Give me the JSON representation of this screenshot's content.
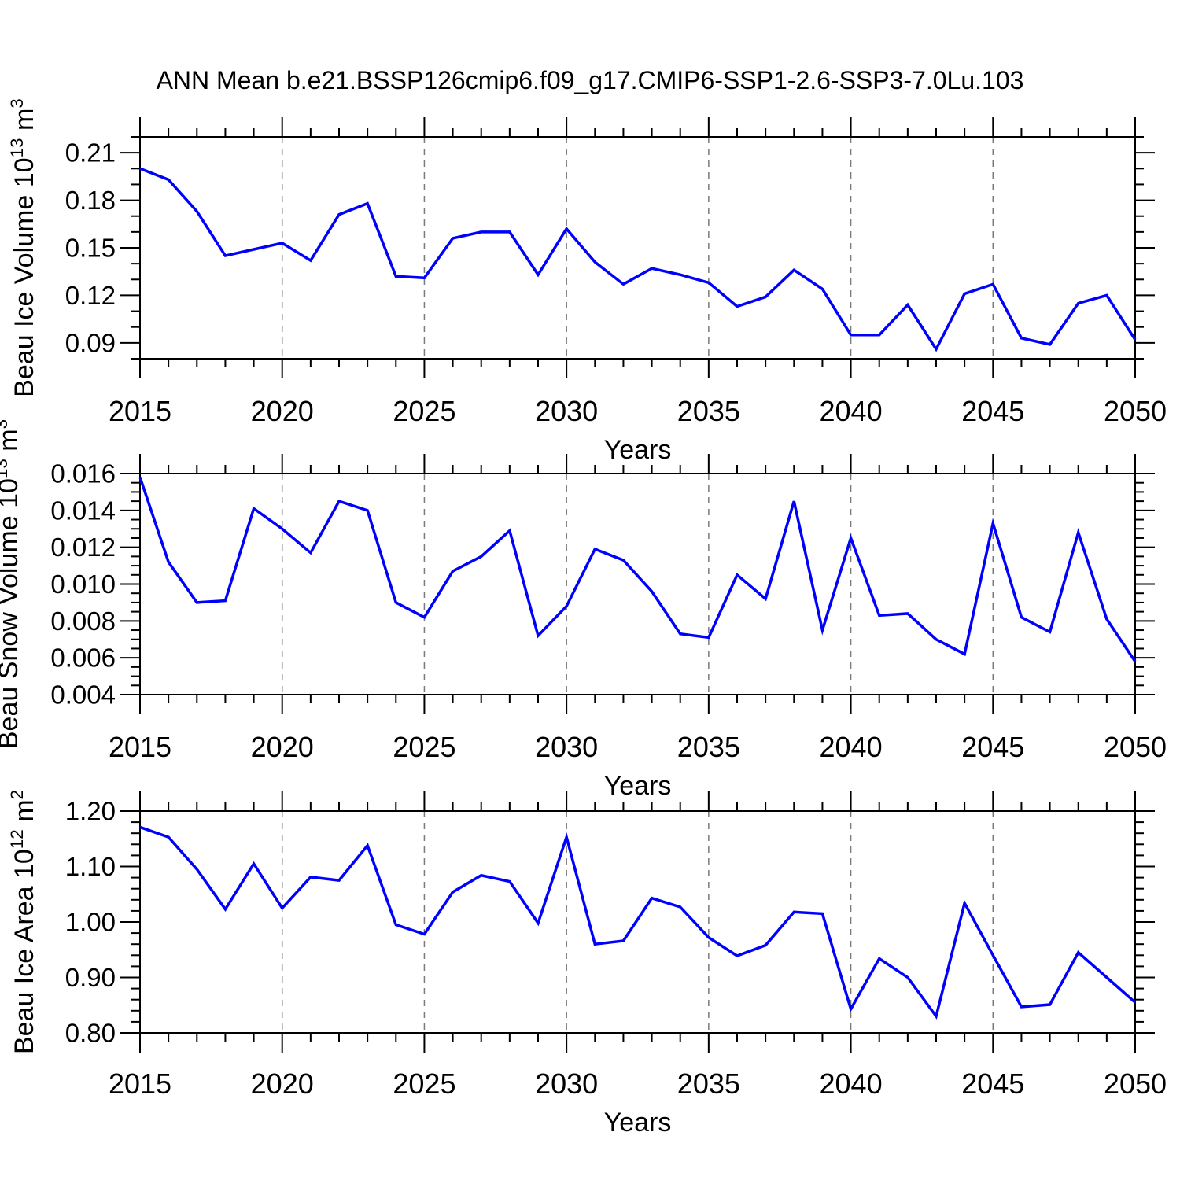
{
  "title": "ANN Mean b.e21.BSSP126cmip6.f09_g17.CMIP6-SSP1-2.6-SSP3-7.0Lu.103",
  "colors": {
    "line": "#0000ff",
    "grid": "#7a7a7a",
    "axis": "#000000",
    "background": "#ffffff"
  },
  "chart_data": [
    {
      "type": "line",
      "ylabel": "Beau Ice Volume 10^13 m^3",
      "ylabel_parts": [
        {
          "t": "Beau Ice Volume 10"
        },
        {
          "t": "13",
          "sup": true
        },
        {
          "t": " m"
        },
        {
          "t": "3",
          "sup": true
        }
      ],
      "xlabel": "Years",
      "ylim": [
        0.08,
        0.22
      ],
      "yticks": [
        {
          "v": 0.09,
          "label": "0.09"
        },
        {
          "v": 0.12,
          "label": "0.12"
        },
        {
          "v": 0.15,
          "label": "0.15"
        },
        {
          "v": 0.18,
          "label": "0.18"
        },
        {
          "v": 0.21,
          "label": "0.21"
        }
      ],
      "y_minor_step": 0.01,
      "xticks": [
        {
          "v": 2015,
          "label": "2015"
        },
        {
          "v": 2020,
          "label": "2020"
        },
        {
          "v": 2025,
          "label": "2025"
        },
        {
          "v": 2030,
          "label": "2030"
        },
        {
          "v": 2035,
          "label": "2035"
        },
        {
          "v": 2040,
          "label": "2040"
        },
        {
          "v": 2045,
          "label": "2045"
        },
        {
          "v": 2050,
          "label": "2050"
        }
      ],
      "gridlines_x": [
        2020,
        2025,
        2030,
        2035,
        2040,
        2045
      ],
      "grid": "vertical-dashed",
      "legend": "none",
      "x": [
        2015,
        2016,
        2017,
        2018,
        2019,
        2020,
        2021,
        2022,
        2023,
        2024,
        2025,
        2026,
        2027,
        2028,
        2029,
        2030,
        2031,
        2032,
        2033,
        2034,
        2035,
        2036,
        2037,
        2038,
        2039,
        2040,
        2041,
        2042,
        2043,
        2044,
        2045,
        2046,
        2047,
        2048,
        2049,
        2050
      ],
      "series": [
        {
          "name": "Beau Ice Volume",
          "values": [
            0.2,
            0.193,
            0.173,
            0.145,
            0.149,
            0.153,
            0.142,
            0.171,
            0.178,
            0.132,
            0.131,
            0.156,
            0.16,
            0.16,
            0.133,
            0.162,
            0.141,
            0.127,
            0.137,
            0.133,
            0.128,
            0.113,
            0.119,
            0.136,
            0.124,
            0.095,
            0.095,
            0.114,
            0.086,
            0.121,
            0.127,
            0.093,
            0.089,
            0.115,
            0.12,
            0.092
          ]
        }
      ]
    },
    {
      "type": "line",
      "ylabel": "Beau Snow Volume 10^13 m^3",
      "ylabel_parts": [
        {
          "t": "Beau Snow Volume 10"
        },
        {
          "t": "13",
          "sup": true
        },
        {
          "t": " m"
        },
        {
          "t": "3",
          "sup": true
        }
      ],
      "xlabel": "Years",
      "ylim": [
        0.004,
        0.016
      ],
      "yticks": [
        {
          "v": 0.004,
          "label": "0.004"
        },
        {
          "v": 0.006,
          "label": "0.006"
        },
        {
          "v": 0.008,
          "label": "0.008"
        },
        {
          "v": 0.01,
          "label": "0.010"
        },
        {
          "v": 0.012,
          "label": "0.012"
        },
        {
          "v": 0.014,
          "label": "0.014"
        },
        {
          "v": 0.016,
          "label": "0.016"
        }
      ],
      "y_minor_step": 0.0005,
      "xticks": [
        {
          "v": 2015,
          "label": "2015"
        },
        {
          "v": 2020,
          "label": "2020"
        },
        {
          "v": 2025,
          "label": "2025"
        },
        {
          "v": 2030,
          "label": "2030"
        },
        {
          "v": 2035,
          "label": "2035"
        },
        {
          "v": 2040,
          "label": "2040"
        },
        {
          "v": 2045,
          "label": "2045"
        },
        {
          "v": 2050,
          "label": "2050"
        }
      ],
      "gridlines_x": [
        2020,
        2025,
        2030,
        2035,
        2040,
        2045
      ],
      "grid": "vertical-dashed",
      "legend": "none",
      "x": [
        2015,
        2016,
        2017,
        2018,
        2019,
        2020,
        2021,
        2022,
        2023,
        2024,
        2025,
        2026,
        2027,
        2028,
        2029,
        2030,
        2031,
        2032,
        2033,
        2034,
        2035,
        2036,
        2037,
        2038,
        2039,
        2040,
        2041,
        2042,
        2043,
        2044,
        2045,
        2046,
        2047,
        2048,
        2049,
        2050
      ],
      "series": [
        {
          "name": "Beau Snow Volume",
          "values": [
            0.0158,
            0.0112,
            0.009,
            0.0091,
            0.0141,
            0.013,
            0.0117,
            0.0145,
            0.014,
            0.009,
            0.0082,
            0.0107,
            0.0115,
            0.0129,
            0.0072,
            0.0088,
            0.0119,
            0.0113,
            0.0096,
            0.0073,
            0.0071,
            0.0105,
            0.0092,
            0.0145,
            0.0075,
            0.0125,
            0.0083,
            0.0084,
            0.007,
            0.0062,
            0.0133,
            0.0082,
            0.0074,
            0.0128,
            0.0081,
            0.0058
          ]
        }
      ]
    },
    {
      "type": "line",
      "ylabel": "Beau Ice Area 10^12 m^2",
      "ylabel_parts": [
        {
          "t": "Beau Ice Area 10"
        },
        {
          "t": "12",
          "sup": true
        },
        {
          "t": " m"
        },
        {
          "t": "2",
          "sup": true
        }
      ],
      "xlabel": "Years",
      "ylim": [
        0.8,
        1.2
      ],
      "yticks": [
        {
          "v": 0.8,
          "label": "0.80"
        },
        {
          "v": 0.9,
          "label": "0.90"
        },
        {
          "v": 1.0,
          "label": "1.00"
        },
        {
          "v": 1.1,
          "label": "1.10"
        },
        {
          "v": 1.2,
          "label": "1.20"
        }
      ],
      "y_minor_step": 0.02,
      "xticks": [
        {
          "v": 2015,
          "label": "2015"
        },
        {
          "v": 2020,
          "label": "2020"
        },
        {
          "v": 2025,
          "label": "2025"
        },
        {
          "v": 2030,
          "label": "2030"
        },
        {
          "v": 2035,
          "label": "2035"
        },
        {
          "v": 2040,
          "label": "2040"
        },
        {
          "v": 2045,
          "label": "2045"
        },
        {
          "v": 2050,
          "label": "2050"
        }
      ],
      "gridlines_x": [
        2020,
        2025,
        2030,
        2035,
        2040,
        2045
      ],
      "grid": "vertical-dashed",
      "legend": "none",
      "x": [
        2015,
        2016,
        2017,
        2018,
        2019,
        2020,
        2021,
        2022,
        2023,
        2024,
        2025,
        2026,
        2027,
        2028,
        2029,
        2030,
        2031,
        2032,
        2033,
        2034,
        2035,
        2036,
        2037,
        2038,
        2039,
        2040,
        2041,
        2042,
        2043,
        2044,
        2045,
        2046,
        2047,
        2048,
        2049,
        2050
      ],
      "series": [
        {
          "name": "Beau Ice Area",
          "values": [
            1.171,
            1.153,
            1.095,
            1.023,
            1.105,
            1.025,
            1.081,
            1.075,
            1.138,
            0.995,
            0.978,
            1.054,
            1.084,
            1.073,
            0.998,
            1.153,
            0.96,
            0.966,
            1.043,
            1.027,
            0.972,
            0.939,
            0.958,
            1.018,
            1.015,
            0.843,
            0.934,
            0.9,
            0.83,
            1.034,
            0.94,
            0.847,
            0.851,
            0.945,
            0.9,
            0.855
          ]
        }
      ]
    }
  ]
}
